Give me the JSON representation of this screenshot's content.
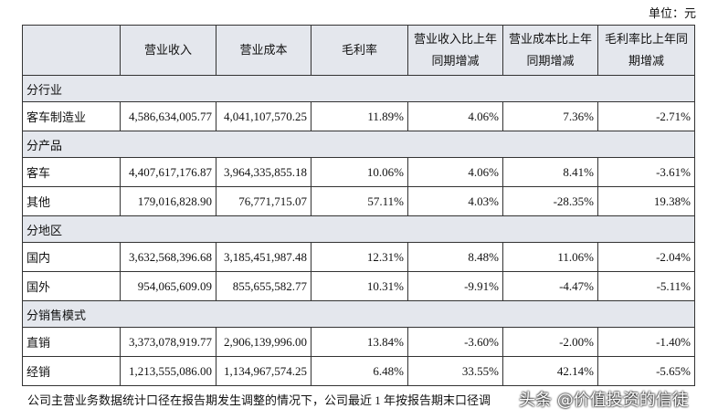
{
  "header": {
    "unit": "单位：元"
  },
  "table": {
    "columns": [
      "",
      "营业收入",
      "营业成本",
      "毛利率",
      "营业收入比上年同期增减",
      "营业成本比上年同期增减",
      "毛利率比上年同期增减"
    ],
    "sections": [
      {
        "title": "分行业",
        "rows": [
          [
            "客车制造业",
            "4,586,634,005.77",
            "4,041,107,570.25",
            "11.89%",
            "4.06%",
            "7.36%",
            "-2.71%"
          ]
        ]
      },
      {
        "title": "分产品",
        "rows": [
          [
            "客车",
            "4,407,617,176.87",
            "3,964,335,855.18",
            "10.06%",
            "4.06%",
            "8.41%",
            "-3.61%"
          ],
          [
            "其他",
            "179,016,828.90",
            "76,771,715.07",
            "57.11%",
            "4.03%",
            "-28.35%",
            "19.38%"
          ]
        ]
      },
      {
        "title": "分地区",
        "rows": [
          [
            "国内",
            "3,632,568,396.68",
            "3,185,451,987.48",
            "12.31%",
            "8.48%",
            "11.06%",
            "-2.04%"
          ],
          [
            "国外",
            "954,065,609.09",
            "855,655,582.77",
            "10.31%",
            "-9.91%",
            "-4.47%",
            "-5.11%"
          ]
        ]
      },
      {
        "title": "分销售模式",
        "rows": [
          [
            "直销",
            "3,373,078,919.77",
            "2,906,139,996.00",
            "13.84%",
            "-3.60%",
            "-2.00%",
            "-1.40%"
          ],
          [
            "经销",
            "1,213,555,086.00",
            "1,134,967,574.25",
            "6.48%",
            "33.55%",
            "42.14%",
            "-5.65%"
          ]
        ]
      }
    ]
  },
  "footnote": "公司主营业务数据统计口径在报告期发生调整的情况下，公司最近 1 年按报告期末口径调",
  "watermark": "头条 @价值投资的信徒"
}
